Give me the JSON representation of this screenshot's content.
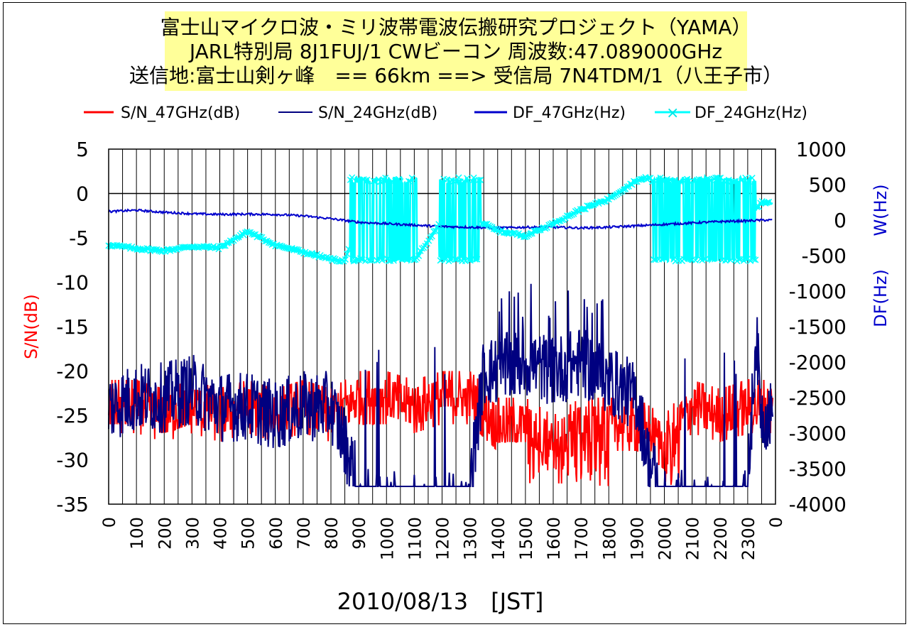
{
  "chart_data": {
    "type": "line",
    "title_lines": [
      "富士山マイクロ波・ミリ波帯電波伝搬研究プロジェクト（YAMA）",
      "JARL特別局 8J1FUJ/1 CWビーコン 周波数:47.089000GHz",
      "送信地:富士山剣ヶ峰　== 66km ==> 受信局 7N4TDM/1（八王子市）"
    ],
    "xlabel": "2010/08/13　[JST]",
    "ylabel_left": "S/N(dB)",
    "ylabel_right_1": "DF(Hz)",
    "ylabel_right_2": "W(Hz)",
    "x_ticks": [
      "0",
      "100",
      "200",
      "300",
      "400",
      "500",
      "600",
      "700",
      "800",
      "900",
      "1000",
      "1100",
      "1200",
      "1300",
      "1400",
      "1500",
      "1600",
      "1700",
      "1800",
      "1900",
      "2000",
      "2100",
      "2200",
      "2300",
      "0"
    ],
    "y_left_ticks": [
      5,
      0,
      -5,
      -10,
      -15,
      -20,
      -25,
      -30,
      -35
    ],
    "y_left_lim": [
      -35,
      5
    ],
    "y_right_ticks": [
      1000,
      500,
      0,
      -500,
      -1000,
      -1500,
      -2000,
      -2500,
      -3000,
      -3500,
      -4000
    ],
    "y_right_lim": [
      -4000,
      1000
    ],
    "grid": "vertical",
    "legend_position": "top",
    "colors": {
      "sn47": "#ff0000",
      "sn24": "#000080",
      "df47": "#0000cc",
      "df24": "#00ffff",
      "title_bg": "#ffff99"
    },
    "series": [
      {
        "name": "S/N_47GHz(dB)",
        "axis": "left",
        "hours": [
          0,
          100,
          200,
          300,
          400,
          500,
          600,
          700,
          800,
          900,
          1000,
          1100,
          1200,
          1300,
          1400,
          1500,
          1600,
          1700,
          1800,
          1900,
          2000,
          2100,
          2200,
          2300,
          2350
        ],
        "values": [
          -24,
          -24,
          -25,
          -24,
          -25,
          -24,
          -25,
          -24,
          -25,
          -23,
          -23,
          -24,
          -23,
          -23,
          -26,
          -26,
          -28,
          -26,
          -26,
          -26,
          -28,
          -24,
          -25,
          -24,
          -24
        ]
      },
      {
        "name": "S/N_24GHz(dB)",
        "axis": "left",
        "hours": [
          0,
          100,
          200,
          300,
          400,
          500,
          600,
          700,
          800,
          850,
          900,
          1000,
          1100,
          1200,
          1300,
          1350,
          1400,
          1500,
          1600,
          1700,
          1800,
          1900,
          1950,
          2000,
          2100,
          2200,
          2300,
          2330,
          2350
        ],
        "values": [
          -24,
          -23,
          -23,
          -22,
          -24,
          -24,
          -25,
          -24,
          -24,
          -28,
          -33,
          -33,
          -33,
          -33,
          -33,
          -20,
          -20,
          -19,
          -20,
          -19,
          -21,
          -23,
          -31,
          -33,
          -33,
          -33,
          -33,
          -16,
          -25
        ]
      },
      {
        "name": "DF_47GHz(Hz)",
        "axis": "right",
        "hours": [
          0,
          100,
          200,
          300,
          400,
          500,
          600,
          700,
          800,
          900,
          1000,
          1100,
          1200,
          1300,
          1400,
          1500,
          1600,
          1700,
          1800,
          1900,
          2000,
          2100,
          2200,
          2300,
          2350
        ],
        "values": [
          120,
          140,
          110,
          90,
          80,
          85,
          80,
          60,
          20,
          -30,
          -50,
          -70,
          -90,
          -100,
          -110,
          -100,
          -100,
          -110,
          -100,
          -80,
          -60,
          -40,
          -20,
          -10,
          0
        ]
      },
      {
        "name": "DF_24GHz(Hz)",
        "axis": "right",
        "hours": [
          0,
          100,
          200,
          300,
          400,
          500,
          600,
          700,
          800,
          850,
          900,
          1000,
          1100,
          1200,
          1300,
          1350,
          1400,
          1500,
          1600,
          1700,
          1800,
          1900,
          1950,
          2000,
          2100,
          2200,
          2300,
          2350
        ],
        "values": [
          -350,
          -400,
          -430,
          -370,
          -390,
          -160,
          -350,
          -450,
          -550,
          -580,
          0,
          0,
          -580,
          0,
          0,
          -50,
          -150,
          -220,
          -50,
          150,
          300,
          560,
          600,
          0,
          0,
          0,
          0,
          250
        ]
      }
    ]
  }
}
